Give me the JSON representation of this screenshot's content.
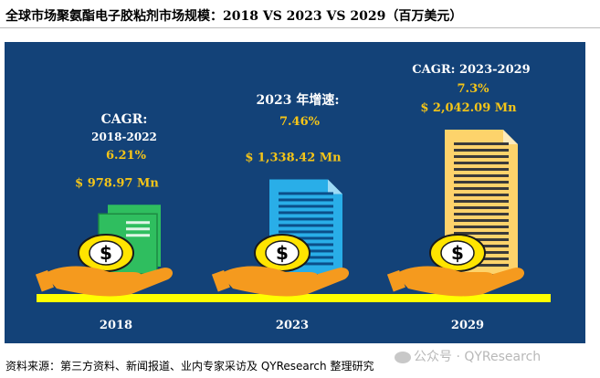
{
  "title": "全球市场聚氨酯电子胶粘剂市场规模：2018 VS 2023 VS 2029（百万美元）",
  "source": "资料来源：第三方资料、新闻报道、业内专家采访及 QYResearch 整理研究",
  "watermark": "公众号 · QYResearch",
  "colors": {
    "panel": "#134278",
    "baseline": "#ffff00",
    "value_text": "#f5c518",
    "doc_2018": "#2fbe5f",
    "doc_2023": "#29aee8",
    "doc_2029": "#fdd36b",
    "coin": "#ffe400",
    "hand": "#f59a1e"
  },
  "icons": [
    "money-document-icon",
    "coin-dollar-icon",
    "hand-icon"
  ],
  "chart_data": {
    "type": "bar",
    "categories": [
      "2018",
      "2023",
      "2029"
    ],
    "values": [
      978.97,
      1338.42,
      2042.09
    ],
    "value_labels": [
      "$ 978.97 Mn",
      "$ 1,338.42 Mn",
      "$ 2,042.09 Mn"
    ],
    "unit": "百万美元",
    "annotations": [
      {
        "heading": "CAGR:",
        "subheading": "2018-2022",
        "value": "6.21%"
      },
      {
        "heading": "2023 年增速:",
        "subheading": "",
        "value": "7.46%"
      },
      {
        "heading": "CAGR: 2023-2029",
        "subheading": "",
        "value": "7.3%"
      }
    ]
  }
}
